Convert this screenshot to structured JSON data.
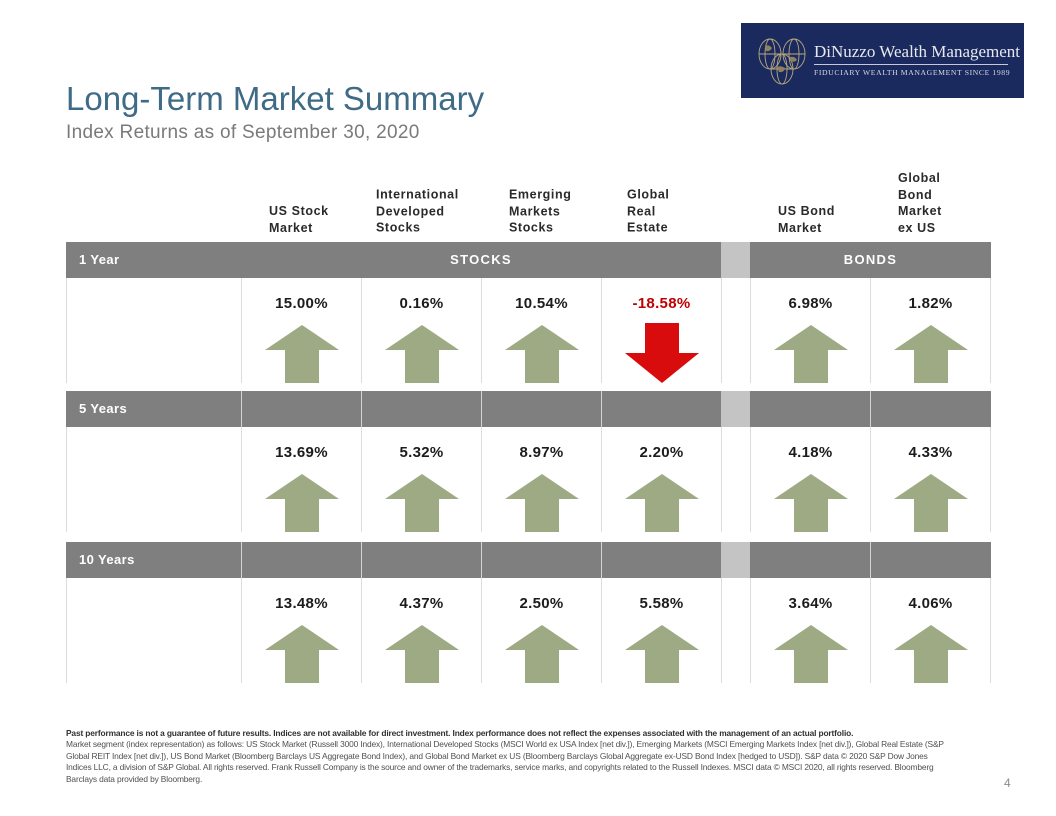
{
  "title": "Long-Term Market Summary",
  "subtitle": "Index Returns as of September 30, 2020",
  "logo": {
    "name": "DiNuzzo Wealth Management",
    "tagline": "FIDUCIARY WEALTH MANAGEMENT SINCE 1989"
  },
  "columns": [
    "US Stock\nMarket",
    "International\nDeveloped\nStocks",
    "Emerging\nMarkets\nStocks",
    "Global\nReal\nEstate",
    "US Bond\nMarket",
    "Global\nBond\nMarket\nex US"
  ],
  "groups": {
    "stocks": "STOCKS",
    "bonds": "BONDS"
  },
  "rows": [
    {
      "label": "1 Year",
      "values": [
        "15.00%",
        "0.16%",
        "10.54%",
        "-18.58%",
        "6.98%",
        "1.82%"
      ],
      "directions": [
        "up",
        "up",
        "up",
        "down",
        "up",
        "up"
      ]
    },
    {
      "label": "5 Years",
      "values": [
        "13.69%",
        "5.32%",
        "8.97%",
        "2.20%",
        "4.18%",
        "4.33%"
      ],
      "directions": [
        "up",
        "up",
        "up",
        "up",
        "up",
        "up"
      ]
    },
    {
      "label": "10 Years",
      "values": [
        "13.48%",
        "4.37%",
        "2.50%",
        "5.58%",
        "3.64%",
        "4.06%"
      ],
      "directions": [
        "up",
        "up",
        "up",
        "up",
        "up",
        "up"
      ]
    }
  ],
  "colors": {
    "title": "#3f6b87",
    "band": "#7f7f7f",
    "gap": "#c4c4c4",
    "up_arrow": "#9daa83",
    "down_arrow": "#d80c0c",
    "negative_text": "#c00000",
    "logo_bg": "#1a2a5e"
  },
  "disclaimer": {
    "lead": "Past performance is not a guarantee of future results. Indices are not available for direct investment. Index performance does not reflect the expenses associated with the management of an actual portfolio.",
    "body": "Market segment (index representation) as follows: US Stock Market (Russell 3000 Index), International Developed Stocks (MSCI World ex USA Index [net div.]), Emerging Markets (MSCI Emerging Markets Index [net div.]), Global Real Estate (S&P Global REIT Index [net div.]), US Bond Market (Bloomberg Barclays US Aggregate Bond Index), and Global Bond Market ex US (Bloomberg Barclays Global Aggregate ex-USD Bond Index [hedged to USD]). S&P data © 2020 S&P Dow Jones Indices LLC, a division of S&P Global. All rights reserved. Frank Russell Company is the source and owner of the trademarks, service marks, and copyrights related to the Russell Indexes. MSCI data © MSCI 2020, all rights reserved. Bloomberg Barclays data provided by Bloomberg."
  },
  "page_number": "4"
}
